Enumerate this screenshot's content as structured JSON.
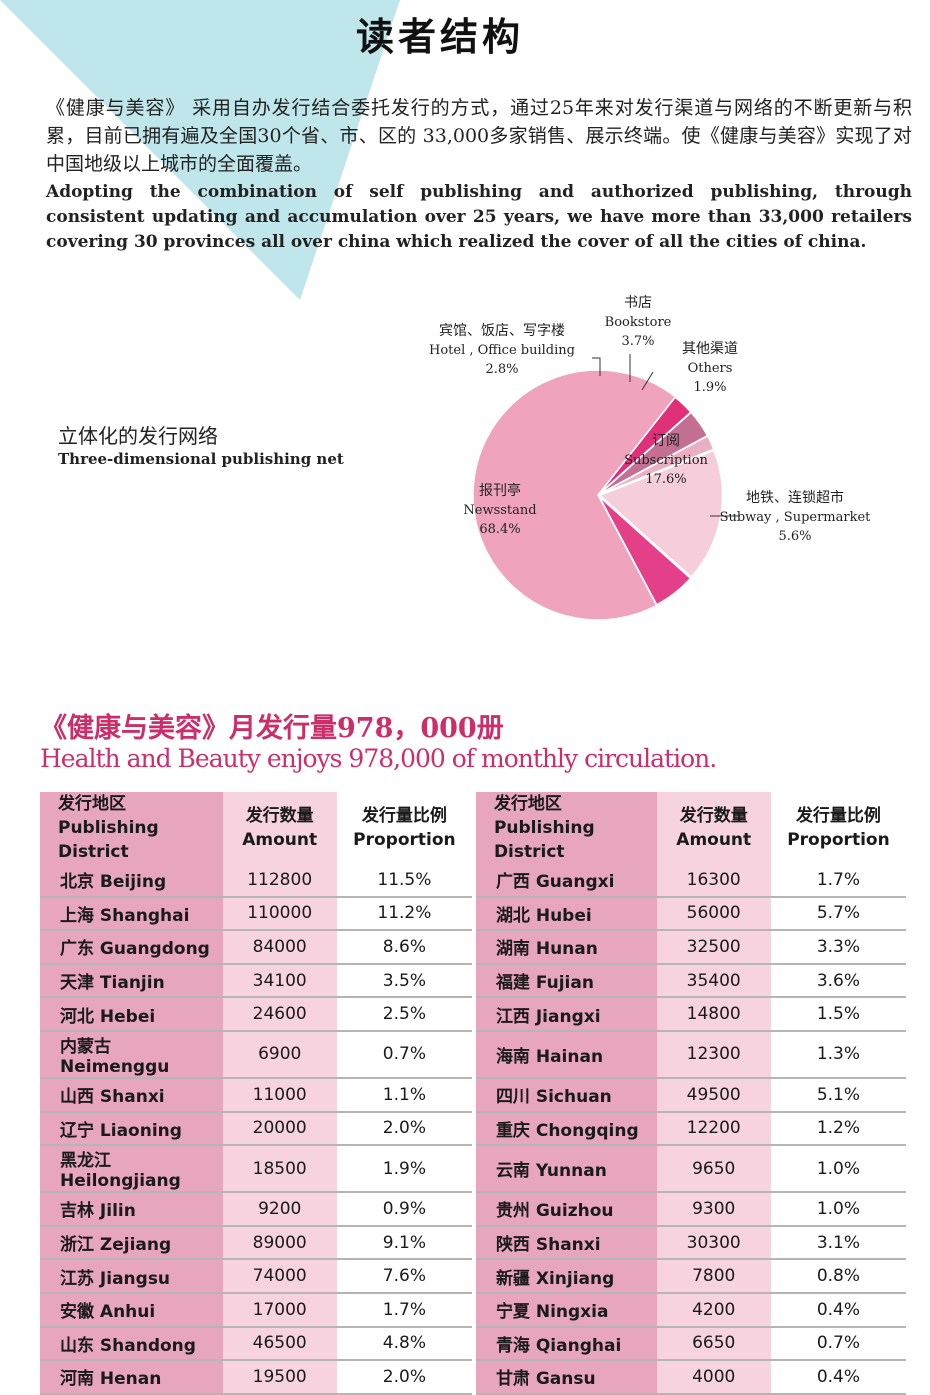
{
  "page": {
    "title": "读者结构",
    "intro_cn": "《健康与美容》 采用自办发行结合委托发行的方式，通过25年来对发行渠道与网络的不断更新与积累，目前已拥有遍及全国30个省、市、区的 33,000多家销售、展示终端。使《健康与美容》实现了对中国地级以上城市的全面覆盖。",
    "intro_en": "Adopting the combination of self publishing and authorized publishing, through consistent updating and accumulation over 25 years, we have more than 33,000 retailers covering 30 provinces all over china which realized the cover of all the cities of china.",
    "network_cn": "立体化的发行网络",
    "network_en": "Three-dimensional publishing net",
    "circulation_cn": "《健康与美容》月发行量978，000册",
    "circulation_en": "Health and Beauty enjoys 978,000 of monthly circulation."
  },
  "colors": {
    "accent": "#cc2e6a",
    "triangle": "#bfe6ea",
    "district_bg": "#e7a6bd",
    "amount_bg": "#f6d3de"
  },
  "chart_data": [
    {
      "type": "pie",
      "slices": [
        {
          "label_cn": "报刊亭",
          "label_en": "Newsstand",
          "value": 68.4,
          "value_label": "68.4%",
          "color": "#f0a3bc"
        },
        {
          "label_cn": "宾馆、饭店、写字楼",
          "label_en": "Hotel , Office building",
          "value": 2.8,
          "value_label": "2.8%",
          "color": "#e0307a"
        },
        {
          "label_cn": "书店",
          "label_en": "Bookstore",
          "value": 3.7,
          "value_label": "3.7%",
          "color": "#c47093"
        },
        {
          "label_cn": "其他渠道",
          "label_en": "Others",
          "value": 1.9,
          "value_label": "1.9%",
          "color": "#e9b0c4"
        },
        {
          "label_cn": "订阅",
          "label_en": "Subscription",
          "value": 17.6,
          "value_label": "17.6%",
          "color": "#f6cedb"
        },
        {
          "label_cn": "地铁、连锁超市",
          "label_en": "Subway , Supermarket",
          "value": 5.6,
          "value_label": "5.6%",
          "color": "#e4408a"
        }
      ]
    },
    {
      "type": "table",
      "columns": [
        {
          "cn": "发行地区",
          "en": "Publishing District"
        },
        {
          "cn": "发行数量",
          "en": "Amount"
        },
        {
          "cn": "发行量比例",
          "en": "Proportion"
        }
      ],
      "left": [
        {
          "district": "北京 Beijing",
          "amount": "112800",
          "proportion": "11.5%"
        },
        {
          "district": "上海 Shanghai",
          "amount": "110000",
          "proportion": "11.2%"
        },
        {
          "district": "广东 Guangdong",
          "amount": "84000",
          "proportion": "8.6%"
        },
        {
          "district": "天津 Tianjin",
          "amount": "34100",
          "proportion": "3.5%"
        },
        {
          "district": "河北 Hebei",
          "amount": "24600",
          "proportion": "2.5%"
        },
        {
          "district": "内蒙古 Neimenggu",
          "amount": "6900",
          "proportion": "0.7%"
        },
        {
          "district": "山西 Shanxi",
          "amount": "11000",
          "proportion": "1.1%"
        },
        {
          "district": "辽宁 Liaoning",
          "amount": "20000",
          "proportion": "2.0%"
        },
        {
          "district": "黑龙江 Heilongjiang",
          "amount": "18500",
          "proportion": "1.9%"
        },
        {
          "district": "吉林 Jilin",
          "amount": "9200",
          "proportion": "0.9%"
        },
        {
          "district": "浙江 Zejiang",
          "amount": "89000",
          "proportion": "9.1%"
        },
        {
          "district": "江苏 Jiangsu",
          "amount": "74000",
          "proportion": "7.6%"
        },
        {
          "district": "安徽 Anhui",
          "amount": "17000",
          "proportion": "1.7%"
        },
        {
          "district": "山东 Shandong",
          "amount": "46500",
          "proportion": "4.8%"
        },
        {
          "district": "河南 Henan",
          "amount": "19500",
          "proportion": "2.0%"
        }
      ],
      "right": [
        {
          "district": "广西 Guangxi",
          "amount": "16300",
          "proportion": "1.7%"
        },
        {
          "district": "湖北 Hubei",
          "amount": "56000",
          "proportion": "5.7%"
        },
        {
          "district": "湖南 Hunan",
          "amount": "32500",
          "proportion": "3.3%"
        },
        {
          "district": "福建 Fujian",
          "amount": "35400",
          "proportion": "3.6%"
        },
        {
          "district": "江西 Jiangxi",
          "amount": "14800",
          "proportion": "1.5%"
        },
        {
          "district": "海南 Hainan",
          "amount": "12300",
          "proportion": "1.3%"
        },
        {
          "district": "四川 Sichuan",
          "amount": "49500",
          "proportion": "5.1%"
        },
        {
          "district": "重庆 Chongqing",
          "amount": "12200",
          "proportion": "1.2%"
        },
        {
          "district": "云南 Yunnan",
          "amount": "9650",
          "proportion": "1.0%"
        },
        {
          "district": "贵州 Guizhou",
          "amount": "9300",
          "proportion": "1.0%"
        },
        {
          "district": "陕西 Shanxi",
          "amount": "30300",
          "proportion": "3.1%"
        },
        {
          "district": "新疆 Xinjiang",
          "amount": "7800",
          "proportion": "0.8%"
        },
        {
          "district": "宁夏 Ningxia",
          "amount": "4200",
          "proportion": "0.4%"
        },
        {
          "district": "青海 Qianghai",
          "amount": "6650",
          "proportion": "0.7%"
        },
        {
          "district": "甘肃 Gansu",
          "amount": "4000",
          "proportion": "0.4%"
        }
      ]
    }
  ]
}
